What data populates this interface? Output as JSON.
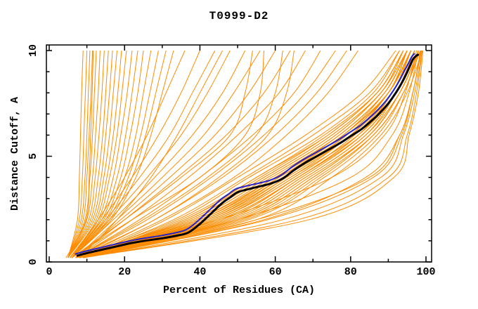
{
  "title": "T0999-D2",
  "colors": {
    "background": "#ffffff",
    "frame": "#000000",
    "orange_models": "#ff8c00",
    "blue_model": "#2424c8",
    "black_model": "#000000"
  },
  "chart_data": {
    "type": "line",
    "title": "T0999-D2",
    "xlabel": "Percent of Residues (CA)",
    "ylabel": "Distance Cutoff, A",
    "xlim": [
      0,
      100
    ],
    "ylim": [
      0,
      10
    ],
    "grid": false,
    "legend": null,
    "x_major_ticks": [
      0,
      20,
      40,
      60,
      80,
      100
    ],
    "x_minor_ticks": [
      10,
      30,
      50,
      70,
      90
    ],
    "y_major_ticks": [
      0,
      5,
      10
    ],
    "y_minor_ticks": [
      1,
      2,
      3,
      4,
      6,
      7,
      8,
      9
    ],
    "series": [
      {
        "name": "server-models",
        "color": "#ff8c00",
        "line_width": 1,
        "y_levels": [
          0.2,
          2,
          4,
          6,
          8,
          10
        ],
        "curves_x": [
          [
            5,
            7.5,
            8,
            8.3,
            8.6,
            9
          ],
          [
            5,
            8,
            8.8,
            9.2,
            9.6,
            10
          ],
          [
            5,
            8.5,
            9.5,
            10,
            10.4,
            10.8
          ],
          [
            5,
            9,
            10,
            10.6,
            11.1,
            11.5
          ],
          [
            5,
            9.5,
            10.8,
            11.5,
            12,
            12.5
          ],
          [
            5,
            10,
            11.5,
            12.3,
            13,
            13.5
          ],
          [
            5,
            10.5,
            12.2,
            13.2,
            14,
            14.6
          ],
          [
            5,
            11,
            13,
            14.2,
            15,
            15.7
          ],
          [
            5,
            11.5,
            13.8,
            15,
            16,
            16.8
          ],
          [
            5,
            12,
            14.5,
            16,
            17,
            18
          ],
          [
            5.5,
            12.5,
            15.3,
            17,
            18.2,
            19.2
          ],
          [
            5.5,
            13,
            16,
            18,
            19.3,
            20.5
          ],
          [
            5.5,
            13.5,
            17,
            19,
            20.7,
            22
          ],
          [
            5.5,
            14,
            18,
            20.3,
            22,
            23.5
          ],
          [
            5.5,
            14.5,
            19,
            21.5,
            23.5,
            25
          ],
          [
            6,
            15,
            20,
            23,
            25,
            27
          ],
          [
            6,
            15.5,
            21,
            24.3,
            26.7,
            29
          ],
          [
            6,
            16,
            22,
            25.6,
            28.3,
            31
          ],
          [
            6,
            16.5,
            23,
            27,
            30,
            33
          ],
          [
            4.5,
            9.8,
            10.6,
            11,
            11.4,
            11.7
          ],
          [
            6,
            13,
            20,
            26,
            31,
            36
          ],
          [
            6,
            14,
            22,
            29,
            35,
            40
          ],
          [
            6,
            15,
            24,
            32,
            38,
            44
          ],
          [
            6,
            16,
            26,
            35,
            42,
            48
          ],
          [
            6,
            17,
            28,
            38,
            46,
            52
          ],
          [
            7,
            18,
            30,
            41,
            49,
            56
          ],
          [
            7,
            19,
            32,
            44,
            53,
            60
          ],
          [
            7,
            20,
            34,
            47,
            57,
            64
          ],
          [
            7,
            22,
            37,
            50,
            61,
            68
          ],
          [
            7,
            24,
            40,
            54,
            65,
            72
          ],
          [
            7,
            26,
            43,
            57,
            68,
            76
          ],
          [
            8,
            28,
            46,
            60,
            71,
            79
          ],
          [
            8,
            30,
            49,
            63,
            74,
            82
          ],
          [
            8,
            18,
            27,
            34,
            40,
            46
          ],
          [
            7,
            36,
            55,
            74,
            87,
            94
          ],
          [
            8,
            40,
            60,
            78,
            89,
            95
          ],
          [
            7,
            44,
            64,
            82,
            92,
            97
          ],
          [
            8,
            38,
            58,
            76,
            88,
            95
          ],
          [
            7,
            46,
            66,
            83,
            92,
            97
          ],
          [
            8,
            42,
            62,
            80,
            91,
            96
          ],
          [
            7,
            34,
            53,
            72,
            86,
            93
          ],
          [
            8,
            48,
            68,
            84,
            93,
            98
          ],
          [
            7,
            40,
            61,
            79,
            90,
            96
          ],
          [
            8,
            44,
            65,
            81,
            91,
            97
          ],
          [
            7,
            37,
            57,
            75,
            88,
            94
          ],
          [
            8,
            50,
            70,
            85,
            93,
            98
          ],
          [
            7,
            42,
            63,
            80,
            90,
            96
          ],
          [
            8,
            35,
            55,
            73,
            87,
            94
          ],
          [
            7,
            47,
            67,
            83,
            92,
            97
          ],
          [
            8,
            39,
            59,
            77,
            89,
            95
          ],
          [
            7,
            45,
            66,
            82,
            91,
            96
          ],
          [
            8,
            41,
            61,
            78,
            90,
            96
          ],
          [
            7,
            49,
            69,
            85,
            93,
            98
          ],
          [
            8,
            36,
            56,
            74,
            87,
            94
          ],
          [
            7,
            43,
            64,
            80,
            91,
            96
          ],
          [
            8,
            51,
            71,
            86,
            94,
            98
          ],
          [
            7,
            38,
            58,
            76,
            88,
            95
          ],
          [
            8,
            46,
            66,
            82,
            92,
            97
          ],
          [
            7,
            40,
            60,
            78,
            90,
            95
          ],
          [
            8,
            52,
            72,
            86,
            94,
            98
          ],
          [
            7,
            44,
            65,
            81,
            91,
            96
          ],
          [
            8,
            37,
            57,
            75,
            88,
            94
          ],
          [
            7,
            48,
            68,
            84,
            92,
            97
          ],
          [
            8,
            42,
            62,
            79,
            90,
            96
          ],
          [
            7,
            50,
            70,
            85,
            93,
            98
          ],
          [
            8,
            39,
            60,
            77,
            89,
            95
          ],
          [
            7,
            45,
            66,
            82,
            91,
            97
          ],
          [
            8,
            43,
            63,
            80,
            90,
            96
          ],
          [
            7,
            47,
            67,
            83,
            92,
            97
          ],
          [
            8,
            41,
            62,
            79,
            90,
            95
          ],
          [
            9,
            53,
            73,
            87,
            94,
            98.5
          ],
          [
            9,
            55,
            75,
            88,
            95,
            99
          ],
          [
            8,
            33,
            52,
            70,
            85,
            93
          ],
          [
            9,
            31,
            50,
            68,
            83,
            92
          ],
          [
            8,
            55,
            85,
            93,
            96.5,
            98.5
          ],
          [
            9,
            62,
            88,
            94,
            97,
            99
          ],
          [
            8,
            58,
            86,
            93.5,
            96.5,
            98.8
          ],
          [
            9,
            66,
            90,
            95,
            97.5,
            99
          ],
          [
            8,
            50,
            80,
            91,
            95.5,
            98
          ],
          [
            9,
            69,
            91.5,
            95.5,
            98,
            99.2
          ],
          [
            8,
            45,
            75,
            89,
            94.5,
            97.5
          ],
          [
            9,
            57,
            84,
            93,
            96.5,
            98.7
          ],
          [
            6,
            20,
            35,
            48,
            52,
            54
          ],
          [
            7,
            25,
            42,
            55,
            60,
            62
          ],
          [
            6,
            22,
            40,
            52,
            56,
            57
          ],
          [
            7,
            28,
            45,
            58,
            63,
            65
          ]
        ]
      },
      {
        "name": "model-blue",
        "color": "#2424c8",
        "line_width": 2,
        "points": [
          [
            7,
            0.38
          ],
          [
            9.5,
            0.5
          ],
          [
            13.5,
            0.67
          ],
          [
            17.5,
            0.84
          ],
          [
            21.5,
            1.0
          ],
          [
            25.5,
            1.13
          ],
          [
            29.5,
            1.24
          ],
          [
            33.5,
            1.38
          ],
          [
            36.5,
            1.54
          ],
          [
            39.5,
            1.95
          ],
          [
            42.5,
            2.45
          ],
          [
            45.5,
            2.95
          ],
          [
            47.5,
            3.2
          ],
          [
            49.5,
            3.45
          ],
          [
            52.5,
            3.6
          ],
          [
            55.5,
            3.72
          ],
          [
            58.5,
            3.86
          ],
          [
            61.5,
            4.1
          ],
          [
            64.5,
            4.5
          ],
          [
            67.5,
            4.85
          ],
          [
            70.5,
            5.15
          ],
          [
            73.5,
            5.45
          ],
          [
            76.5,
            5.75
          ],
          [
            79.5,
            6.1
          ],
          [
            82.5,
            6.45
          ],
          [
            85.5,
            6.9
          ],
          [
            87.5,
            7.25
          ],
          [
            89.5,
            7.65
          ],
          [
            91.5,
            8.15
          ],
          [
            93,
            8.6
          ],
          [
            94.3,
            9.05
          ],
          [
            95.4,
            9.42
          ],
          [
            96.2,
            9.7
          ],
          [
            96.9,
            9.85
          ]
        ]
      },
      {
        "name": "model-black",
        "color": "#000000",
        "line_width": 3,
        "points": [
          [
            7.5,
            0.3
          ],
          [
            10,
            0.42
          ],
          [
            14,
            0.58
          ],
          [
            18,
            0.74
          ],
          [
            22,
            0.9
          ],
          [
            26,
            1.02
          ],
          [
            30,
            1.12
          ],
          [
            34,
            1.25
          ],
          [
            37,
            1.4
          ],
          [
            40,
            1.8
          ],
          [
            43,
            2.3
          ],
          [
            46,
            2.8
          ],
          [
            48,
            3.05
          ],
          [
            50,
            3.3
          ],
          [
            53,
            3.45
          ],
          [
            56,
            3.58
          ],
          [
            59,
            3.72
          ],
          [
            62,
            3.95
          ],
          [
            65,
            4.35
          ],
          [
            68,
            4.7
          ],
          [
            71,
            5.0
          ],
          [
            74,
            5.3
          ],
          [
            77,
            5.6
          ],
          [
            80,
            5.95
          ],
          [
            83,
            6.3
          ],
          [
            86,
            6.75
          ],
          [
            88,
            7.1
          ],
          [
            90,
            7.5
          ],
          [
            92,
            8.0
          ],
          [
            93.5,
            8.45
          ],
          [
            94.8,
            8.9
          ],
          [
            95.8,
            9.3
          ],
          [
            96.6,
            9.6
          ],
          [
            97.4,
            9.75
          ],
          [
            97.9,
            9.8
          ]
        ]
      }
    ]
  }
}
